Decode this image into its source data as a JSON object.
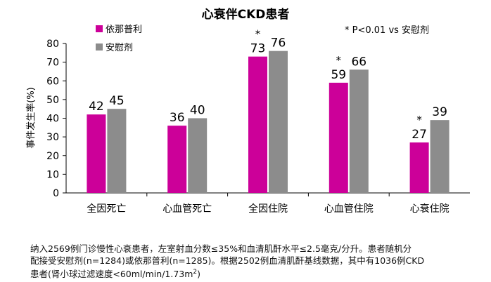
{
  "chart_data": {
    "type": "bar",
    "title": "心衰伴CKD患者",
    "annotation": "* P<0.01 vs 安慰剂",
    "ylabel": "事件发生率(%)",
    "xlabel": "",
    "ylim": [
      0,
      80
    ],
    "yticks": [
      0,
      10,
      20,
      30,
      40,
      50,
      60,
      70,
      80
    ],
    "categories": [
      "全因死亡",
      "心血管死亡",
      "全因住院",
      "心血管住院",
      "心衰住院"
    ],
    "series": [
      {
        "name": "依那普利",
        "values": [
          42,
          36,
          73,
          59,
          27
        ],
        "color": "#cc0099"
      },
      {
        "name": "安慰剂",
        "values": [
          45,
          40,
          76,
          66,
          39
        ],
        "color": "#8c8c8c"
      }
    ],
    "significant": [
      false,
      false,
      true,
      true,
      true
    ],
    "legend_position": "top-left",
    "grid": false
  },
  "footnote": {
    "line1": "纳入2569例门诊慢性心衰患者，左室射血分数≤35%和血清肌酐水平≤2.5毫克/分升。患者随机分",
    "line2": "配接受安慰剂(n=1284)或依那普利(n=1285)。根据2502例血清肌酐基线数据，其中有1036例CKD",
    "line3_prefix": "患者(肾小球过滤速度<60ml/min/1.73m",
    "line3_sup": "2",
    "line3_suffix": ")"
  }
}
